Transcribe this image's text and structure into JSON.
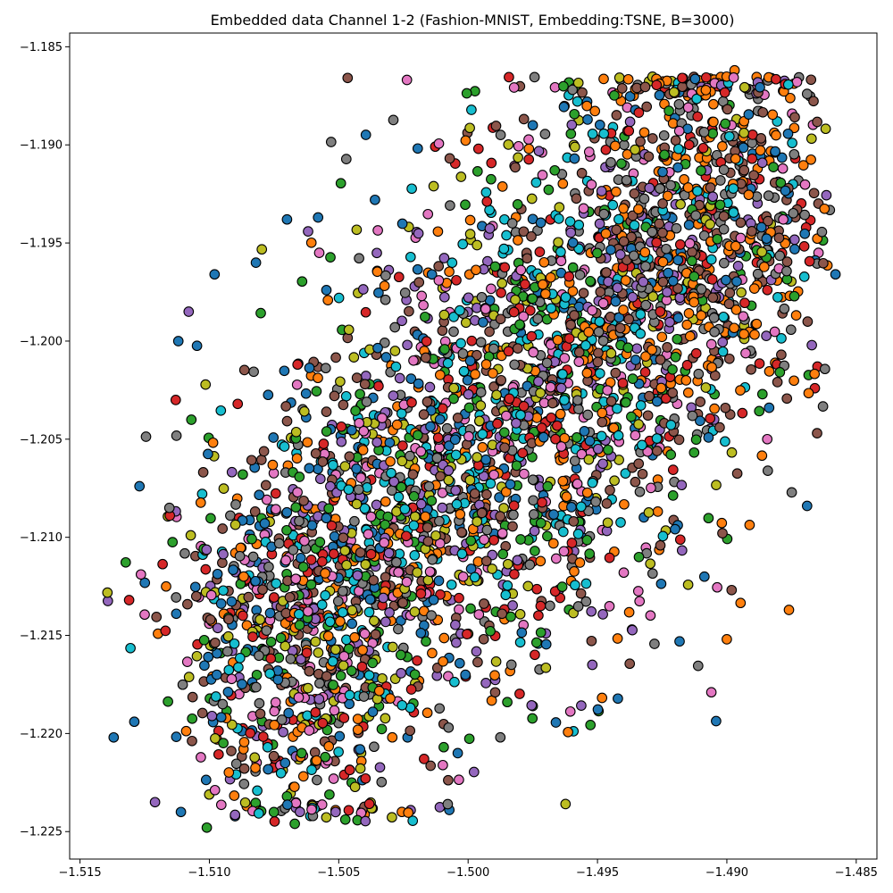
{
  "chart_data": {
    "type": "scatter",
    "title": "Embedded data Channel 1-2 (Fashion-MNIST, Embedding:TSNE, B=3000)",
    "xlabel": "",
    "ylabel": "",
    "xlim": [
      -1.5154,
      -1.4842
    ],
    "ylim": [
      -1.2264,
      -1.1843
    ],
    "xticks": [
      -1.515,
      -1.51,
      -1.505,
      -1.5,
      -1.495,
      -1.49,
      -1.485
    ],
    "yticks": [
      -1.185,
      -1.19,
      -1.195,
      -1.2,
      -1.205,
      -1.21,
      -1.215,
      -1.22,
      -1.225
    ],
    "xtick_labels": [
      "−1.515",
      "−1.510",
      "−1.505",
      "−1.500",
      "−1.495",
      "−1.490",
      "−1.485"
    ],
    "ytick_labels": [
      "−1.185",
      "−1.190",
      "−1.195",
      "−1.200",
      "−1.205",
      "−1.210",
      "−1.215",
      "−1.220",
      "−1.225"
    ],
    "grid": false,
    "marker": "circle",
    "marker_edge_color": "#000000",
    "series_colors": [
      "#1f77b4",
      "#ff7f0e",
      "#2ca02c",
      "#d62728",
      "#9467bd",
      "#8c564b",
      "#e377c2",
      "#7f7f7f",
      "#bcbd22",
      "#17becf"
    ],
    "points": [
      [
        -1.5137,
        -1.2202,
        0
      ],
      [
        -1.5131,
        -1.2132,
        3
      ],
      [
        -1.5129,
        -1.2194,
        0
      ],
      [
        -1.5127,
        -1.2074,
        0
      ],
      [
        -1.5121,
        -1.2235,
        4
      ],
      [
        -1.5113,
        -1.203,
        3
      ],
      [
        -1.5112,
        -1.2,
        0
      ],
      [
        -1.5111,
        -1.224,
        0
      ],
      [
        -1.5101,
        -1.2248,
        2
      ],
      [
        -1.5082,
        -1.2237,
        0
      ],
      [
        -1.5067,
        -1.2246,
        2
      ],
      [
        -1.5058,
        -1.2237,
        6
      ],
      [
        -1.5045,
        -1.2225,
        2
      ],
      [
        -1.5017,
        -1.2213,
        3
      ],
      [
        -1.5004,
        -1.221,
        0
      ],
      [
        -1.49,
        -1.2152,
        1
      ],
      [
        -1.4906,
        -1.2179,
        6
      ],
      [
        -1.4952,
        -1.2165,
        4
      ],
      [
        -1.4975,
        -1.2186,
        2
      ],
      [
        -1.4858,
        -1.1966,
        0
      ],
      [
        -1.4865,
        -1.2013,
        3
      ],
      [
        -1.4866,
        -1.2024,
        3
      ],
      [
        -1.4869,
        -1.2084,
        0
      ],
      [
        -1.4876,
        -1.2137,
        1
      ],
      [
        -1.4897,
        -1.1862,
        1
      ],
      [
        -1.4911,
        -1.1867,
        1
      ],
      [
        -1.4924,
        -1.187,
        1
      ],
      [
        -1.4936,
        -1.1875,
        1
      ],
      [
        -1.4954,
        -1.1878,
        0
      ],
      [
        -1.4975,
        -1.189,
        0
      ],
      [
        -1.4996,
        -1.1902,
        3
      ],
      [
        -1.5036,
        -1.1928,
        0
      ],
      [
        -1.5058,
        -1.1937,
        0
      ],
      [
        -1.507,
        -1.1938,
        0
      ],
      [
        -1.5082,
        -1.196,
        0
      ],
      [
        -1.5098,
        -1.1966,
        0
      ],
      [
        -1.5108,
        -1.1985,
        4
      ],
      [
        -1.4991,
        -1.2045,
        9
      ],
      [
        -1.4987,
        -1.2091,
        5
      ]
    ]
  }
}
